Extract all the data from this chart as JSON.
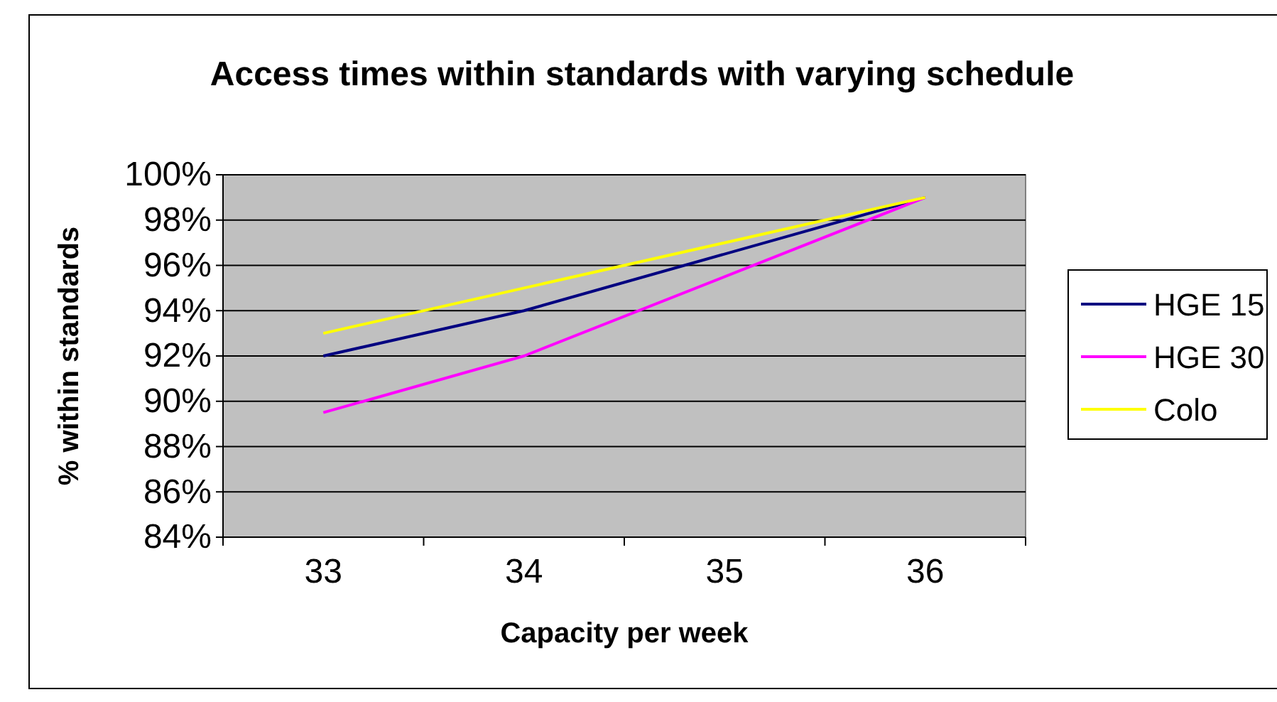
{
  "chart_data": {
    "type": "line",
    "title": "Access times within standards with varying schedule",
    "xlabel": "Capacity per week",
    "ylabel": "% within standards",
    "categories": [
      "33",
      "34",
      "35",
      "36"
    ],
    "series": [
      {
        "name": "HGE 15",
        "color": "#000080",
        "values": [
          92,
          94,
          null,
          99
        ]
      },
      {
        "name": "HGE 30",
        "color": "#ff00ff",
        "values": [
          89.5,
          92,
          null,
          99
        ]
      },
      {
        "name": "Colo",
        "color": "#ffff00",
        "values": [
          93,
          95,
          null,
          99
        ]
      }
    ],
    "ylim": [
      84,
      100
    ],
    "yticks": [
      {
        "value": 84,
        "label": "84%"
      },
      {
        "value": 86,
        "label": "86%"
      },
      {
        "value": 88,
        "label": "88%"
      },
      {
        "value": 90,
        "label": "90%"
      },
      {
        "value": 92,
        "label": "92%"
      },
      {
        "value": 94,
        "label": "94%"
      },
      {
        "value": 96,
        "label": "96%"
      },
      {
        "value": 98,
        "label": "98%"
      },
      {
        "value": 100,
        "label": "100%"
      }
    ],
    "grid": "y",
    "legend": "right",
    "marker": "none",
    "line_style": "solid"
  }
}
